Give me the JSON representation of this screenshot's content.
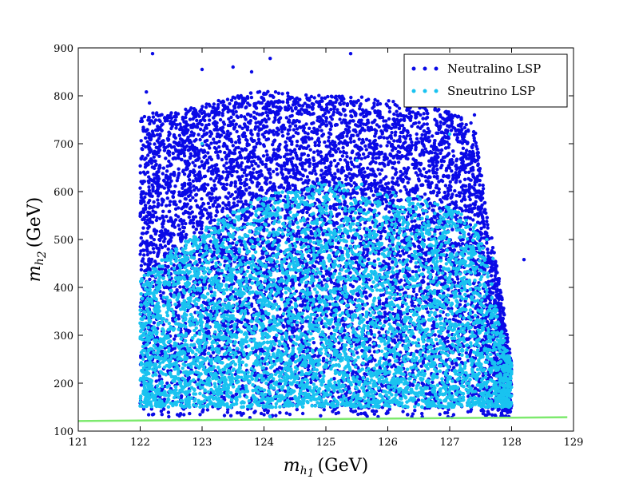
{
  "chart_data": {
    "type": "scatter",
    "title": "",
    "xlabel": {
      "symbol": "m",
      "sub": "h",
      "subsub": "1",
      "unit": "(GeV)"
    },
    "ylabel": {
      "symbol": "m",
      "sub": "h",
      "subsub": "2",
      "unit": "(GeV)"
    },
    "xlim": [
      121,
      129
    ],
    "ylim": [
      100,
      900
    ],
    "xticks": [
      "121",
      "122",
      "123",
      "124",
      "125",
      "126",
      "127",
      "128",
      "129"
    ],
    "yticks": [
      "100",
      "200",
      "300",
      "400",
      "500",
      "600",
      "700",
      "800",
      "900"
    ],
    "grid": false,
    "legend_position": "top-right",
    "series": [
      {
        "name": "Neutralino LSP",
        "color": "#0a0ae6",
        "region": {
          "x": [
            122.0,
            128.0
          ],
          "y_min": 128,
          "y_max_profile": [
            [
              122.0,
              760
            ],
            [
              122.5,
              770
            ],
            [
              123.0,
              780
            ],
            [
              123.5,
              800
            ],
            [
              124.0,
              810
            ],
            [
              124.5,
              805
            ],
            [
              125.0,
              800
            ],
            [
              125.5,
              800
            ],
            [
              126.0,
              790
            ],
            [
              126.5,
              780
            ],
            [
              127.0,
              770
            ],
            [
              127.4,
              740
            ],
            [
              127.6,
              560
            ],
            [
              127.8,
              420
            ],
            [
              128.0,
              240
            ]
          ]
        },
        "points": [
          [
            122.2,
            888
          ],
          [
            122.1,
            808
          ],
          [
            125.4,
            888
          ],
          [
            124.1,
            878
          ],
          [
            123.5,
            860
          ],
          [
            123.0,
            855
          ],
          [
            123.8,
            850
          ],
          [
            127.4,
            760
          ],
          [
            128.2,
            458
          ],
          [
            122.15,
            785
          ],
          [
            126.9,
            795
          ]
        ]
      },
      {
        "name": "Sneutrino LSP",
        "color": "#19c3f0",
        "region": {
          "x": [
            122.0,
            128.0
          ],
          "y_min": 150,
          "y_max_profile": [
            [
              122.0,
              420
            ],
            [
              122.5,
              480
            ],
            [
              123.0,
              520
            ],
            [
              123.5,
              560
            ],
            [
              124.0,
              590
            ],
            [
              124.5,
              610
            ],
            [
              125.0,
              620
            ],
            [
              125.5,
              620
            ],
            [
              126.0,
              600
            ],
            [
              126.5,
              590
            ],
            [
              127.0,
              570
            ],
            [
              127.4,
              540
            ],
            [
              127.6,
              460
            ],
            [
              127.8,
              330
            ],
            [
              128.0,
              240
            ]
          ]
        },
        "points": [
          [
            124.1,
            130
          ],
          [
            125.5,
            665
          ],
          [
            127.0,
            720
          ],
          [
            123.0,
            700
          ],
          [
            127.6,
            500
          ],
          [
            127.7,
            460
          ]
        ]
      }
    ],
    "reference_line": {
      "color": "#7dea6e",
      "points": [
        [
          121,
          121
        ],
        [
          128.9,
          129
        ]
      ]
    }
  }
}
